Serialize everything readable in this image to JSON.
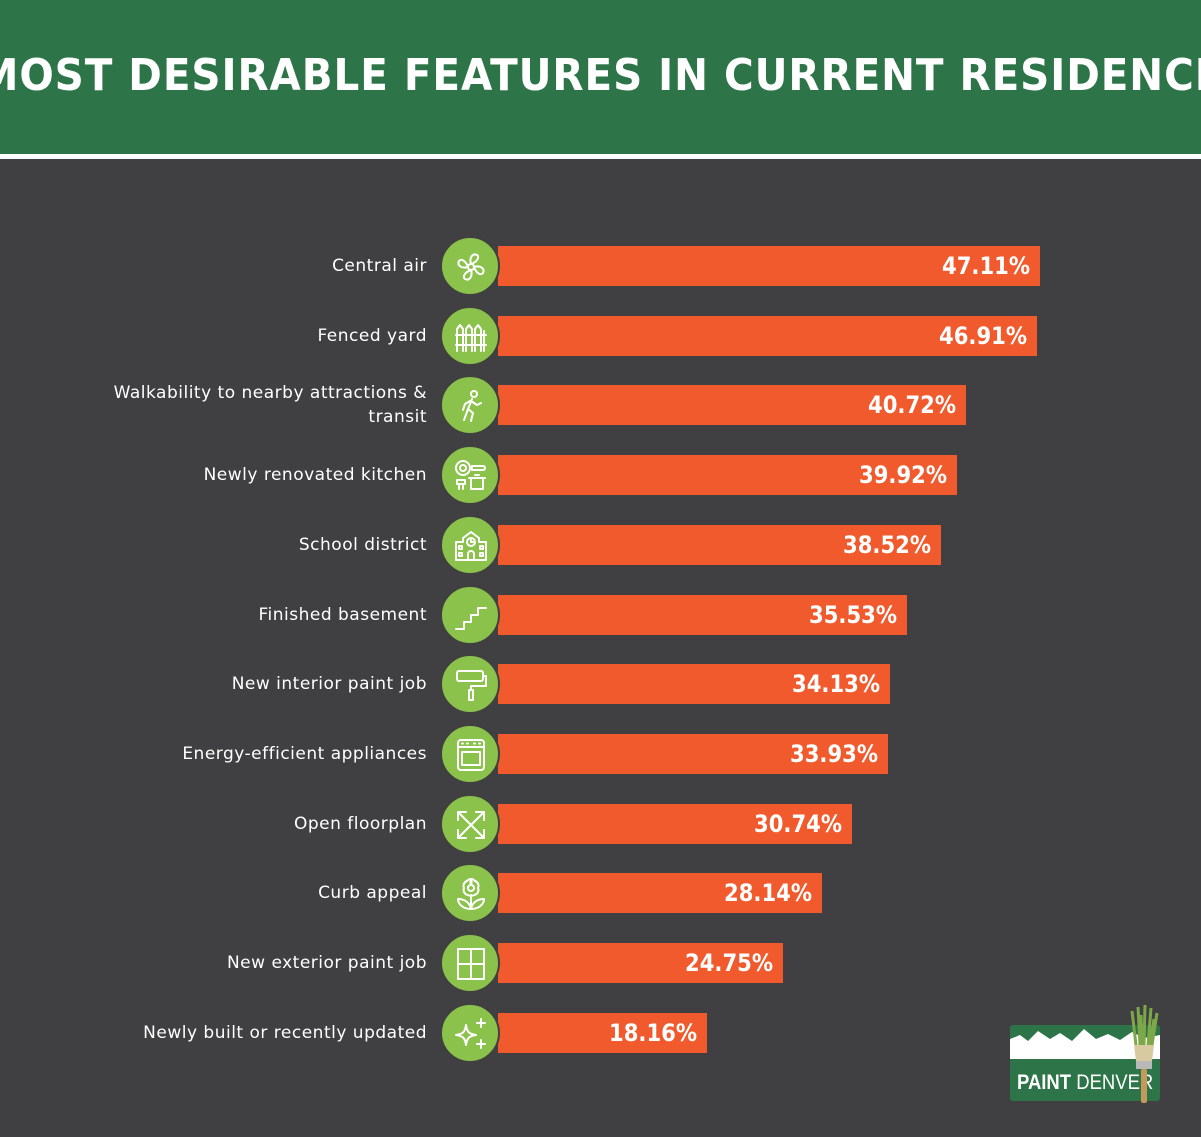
{
  "header": {
    "title": "MOST DESIRABLE FEATURES IN CURRENT RESIDENCE"
  },
  "colors": {
    "header_bg": "#2d7548",
    "background": "#403f41",
    "bar": "#f05a2d",
    "icon_circle": "#8bc24c"
  },
  "chart_data": {
    "type": "bar",
    "orientation": "horizontal",
    "categories": [
      "Central air",
      "Fenced yard",
      "Walkability to nearby attractions & transit",
      "Newly renovated kitchen",
      "School district",
      "Finished basement",
      "New interior paint job",
      "Energy-efficient appliances",
      "Open floorplan",
      "Curb appeal",
      "New exterior paint job",
      "Newly built or recently updated"
    ],
    "values": [
      47.11,
      46.91,
      40.72,
      39.92,
      38.52,
      35.53,
      34.13,
      33.93,
      30.74,
      28.14,
      24.75,
      18.16
    ],
    "value_labels": [
      "47.11%",
      "46.91%",
      "40.72%",
      "39.92%",
      "38.52%",
      "35.53%",
      "34.13%",
      "33.93%",
      "30.74%",
      "28.14%",
      "24.75%",
      "18.16%"
    ],
    "icons": [
      "fan-icon",
      "fence-icon",
      "walking-person-icon",
      "kitchen-icon",
      "school-icon",
      "stairs-icon",
      "paint-roller-icon",
      "oven-icon",
      "expand-arrows-icon",
      "flower-icon",
      "window-icon",
      "sparkle-icon"
    ],
    "xlim": [
      0,
      100
    ],
    "grid": false,
    "legend": "none"
  },
  "logo": {
    "word1": "PAINT",
    "word2": "DENVER"
  }
}
